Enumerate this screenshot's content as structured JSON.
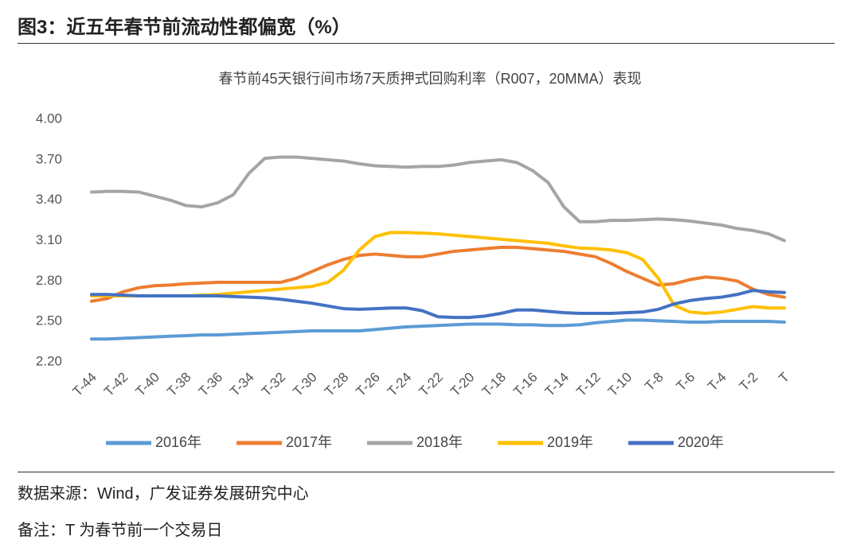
{
  "header": {
    "title": "图3：近五年春节前流动性都偏宽（%）"
  },
  "chart_data": {
    "type": "line",
    "title": "春节前45天银行间市场7天质押式回购利率（R007，20MMA）表现",
    "categories": [
      "T-44",
      null,
      "T-42",
      null,
      "T-40",
      null,
      "T-38",
      null,
      "T-36",
      null,
      "T-34",
      null,
      "T-32",
      null,
      "T-30",
      null,
      "T-28",
      null,
      "T-26",
      null,
      "T-24",
      null,
      "T-22",
      null,
      "T-20",
      null,
      "T-18",
      null,
      "T-16",
      null,
      "T-14",
      null,
      "T-12",
      null,
      "T-10",
      null,
      "T-8",
      null,
      "T-6",
      null,
      "T-4",
      null,
      "T-2",
      null,
      "T"
    ],
    "ylim": [
      2.2,
      4.0
    ],
    "yticks": [
      {
        "value": 2.2,
        "label": "2.20"
      },
      {
        "value": 2.5,
        "label": "2.50"
      },
      {
        "value": 2.8,
        "label": "2.80"
      },
      {
        "value": 3.1,
        "label": "3.10"
      },
      {
        "value": 3.4,
        "label": "3.40"
      },
      {
        "value": 3.7,
        "label": "3.70"
      },
      {
        "value": 4.0,
        "label": "4.00"
      }
    ],
    "grid": false,
    "legend": "bottom",
    "series": [
      {
        "name": "2016年",
        "color": "#5b9bd5",
        "values": [
          2.37,
          2.37,
          2.375,
          2.38,
          2.385,
          2.39,
          2.395,
          2.4,
          2.4,
          2.405,
          2.41,
          2.415,
          2.42,
          2.425,
          2.43,
          2.43,
          2.43,
          2.43,
          2.44,
          2.45,
          2.46,
          2.465,
          2.47,
          2.475,
          2.48,
          2.48,
          2.48,
          2.475,
          2.475,
          2.47,
          2.47,
          2.475,
          2.49,
          2.5,
          2.51,
          2.51,
          2.505,
          2.5,
          2.495,
          2.495,
          2.5,
          2.5,
          2.5,
          2.5,
          2.495
        ]
      },
      {
        "name": "2017年",
        "color": "#ed7d31",
        "values": [
          2.65,
          2.67,
          2.72,
          2.75,
          2.765,
          2.77,
          2.78,
          2.785,
          2.79,
          2.79,
          2.79,
          2.79,
          2.79,
          2.82,
          2.87,
          2.92,
          2.96,
          2.99,
          3.0,
          2.99,
          2.98,
          2.98,
          3.0,
          3.02,
          3.03,
          3.04,
          3.05,
          3.05,
          3.04,
          3.03,
          3.02,
          3.0,
          2.98,
          2.93,
          2.87,
          2.82,
          2.77,
          2.78,
          2.81,
          2.83,
          2.82,
          2.8,
          2.74,
          2.7,
          2.68
        ]
      },
      {
        "name": "2018年",
        "color": "#a5a5a5",
        "values": [
          3.46,
          3.465,
          3.465,
          3.46,
          3.43,
          3.4,
          3.36,
          3.35,
          3.38,
          3.44,
          3.6,
          3.71,
          3.72,
          3.72,
          3.71,
          3.7,
          3.69,
          3.67,
          3.655,
          3.65,
          3.645,
          3.65,
          3.65,
          3.66,
          3.68,
          3.69,
          3.7,
          3.68,
          3.62,
          3.53,
          3.35,
          3.24,
          3.24,
          3.25,
          3.25,
          3.255,
          3.26,
          3.255,
          3.245,
          3.23,
          3.215,
          3.19,
          3.175,
          3.15,
          3.1
        ]
      },
      {
        "name": "2019年",
        "color": "#ffc000",
        "values": [
          2.69,
          2.69,
          2.69,
          2.69,
          2.69,
          2.69,
          2.69,
          2.695,
          2.7,
          2.71,
          2.72,
          2.73,
          2.74,
          2.75,
          2.76,
          2.79,
          2.88,
          3.03,
          3.13,
          3.16,
          3.16,
          3.155,
          3.15,
          3.14,
          3.13,
          3.12,
          3.11,
          3.1,
          3.09,
          3.08,
          3.06,
          3.045,
          3.04,
          3.03,
          3.01,
          2.96,
          2.82,
          2.62,
          2.57,
          2.56,
          2.57,
          2.59,
          2.61,
          2.6,
          2.6
        ]
      },
      {
        "name": "2020年",
        "color": "#4472c4",
        "values": [
          2.7,
          2.7,
          2.695,
          2.69,
          2.69,
          2.69,
          2.69,
          2.69,
          2.69,
          2.685,
          2.68,
          2.675,
          2.665,
          2.65,
          2.635,
          2.615,
          2.595,
          2.59,
          2.595,
          2.6,
          2.6,
          2.58,
          2.535,
          2.53,
          2.53,
          2.54,
          2.56,
          2.585,
          2.585,
          2.575,
          2.565,
          2.56,
          2.56,
          2.56,
          2.565,
          2.57,
          2.59,
          2.63,
          2.655,
          2.67,
          2.68,
          2.7,
          2.73,
          2.72,
          2.715
        ]
      }
    ]
  },
  "footer": {
    "source": "数据来源：Wind，广发证券发展研究中心",
    "note": "备注：T 为春节前一个交易日"
  }
}
